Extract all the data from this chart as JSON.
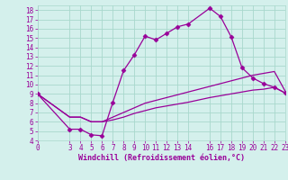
{
  "xlabel": "Windchill (Refroidissement éolien,°C)",
  "background_color": "#d4f0ec",
  "grid_color": "#a8d8cc",
  "line_color": "#990099",
  "xlim": [
    0,
    23
  ],
  "ylim": [
    4,
    18.5
  ],
  "yticks": [
    4,
    5,
    6,
    7,
    8,
    9,
    10,
    11,
    12,
    13,
    14,
    15,
    16,
    17,
    18
  ],
  "xticks": [
    0,
    3,
    4,
    5,
    6,
    7,
    8,
    9,
    10,
    11,
    12,
    13,
    14,
    16,
    17,
    18,
    19,
    20,
    21,
    22,
    23
  ],
  "xtick_labels": [
    "0",
    "3",
    "4",
    "5",
    "6",
    "7",
    "8",
    "9",
    "10",
    "11",
    "12",
    "13",
    "14",
    "16",
    "17",
    "18",
    "19",
    "20",
    "21",
    "22",
    "23"
  ],
  "series1_x": [
    0,
    3,
    4,
    5,
    6,
    7,
    8,
    9,
    10,
    11,
    12,
    13,
    14,
    16,
    17,
    18,
    19,
    20,
    21,
    22,
    23
  ],
  "series1_y": [
    9,
    5.2,
    5.2,
    4.6,
    4.5,
    8.1,
    11.5,
    13.2,
    15.2,
    14.8,
    15.5,
    16.2,
    16.5,
    18.2,
    17.3,
    15.1,
    11.8,
    10.7,
    10.1,
    9.7,
    9.1
  ],
  "series2_x": [
    0,
    3,
    4,
    5,
    6,
    7,
    8,
    9,
    10,
    11,
    12,
    13,
    14,
    16,
    17,
    18,
    19,
    20,
    21,
    22,
    23
  ],
  "series2_y": [
    9,
    6.5,
    6.5,
    6.0,
    6.0,
    6.5,
    7.0,
    7.5,
    8.0,
    8.3,
    8.6,
    8.9,
    9.2,
    9.8,
    10.1,
    10.4,
    10.7,
    11.0,
    11.2,
    11.4,
    9.3
  ],
  "series3_x": [
    0,
    3,
    4,
    5,
    6,
    7,
    8,
    9,
    10,
    11,
    12,
    13,
    14,
    16,
    17,
    18,
    19,
    20,
    21,
    22,
    23
  ],
  "series3_y": [
    9,
    6.5,
    6.5,
    6.0,
    6.0,
    6.2,
    6.5,
    6.9,
    7.2,
    7.5,
    7.7,
    7.9,
    8.1,
    8.6,
    8.8,
    9.0,
    9.2,
    9.4,
    9.5,
    9.7,
    9.1
  ],
  "marker": "D",
  "markersize": 2.5,
  "linewidth": 0.9,
  "font_size_ticks": 5.5,
  "font_size_xlabel": 6.0
}
